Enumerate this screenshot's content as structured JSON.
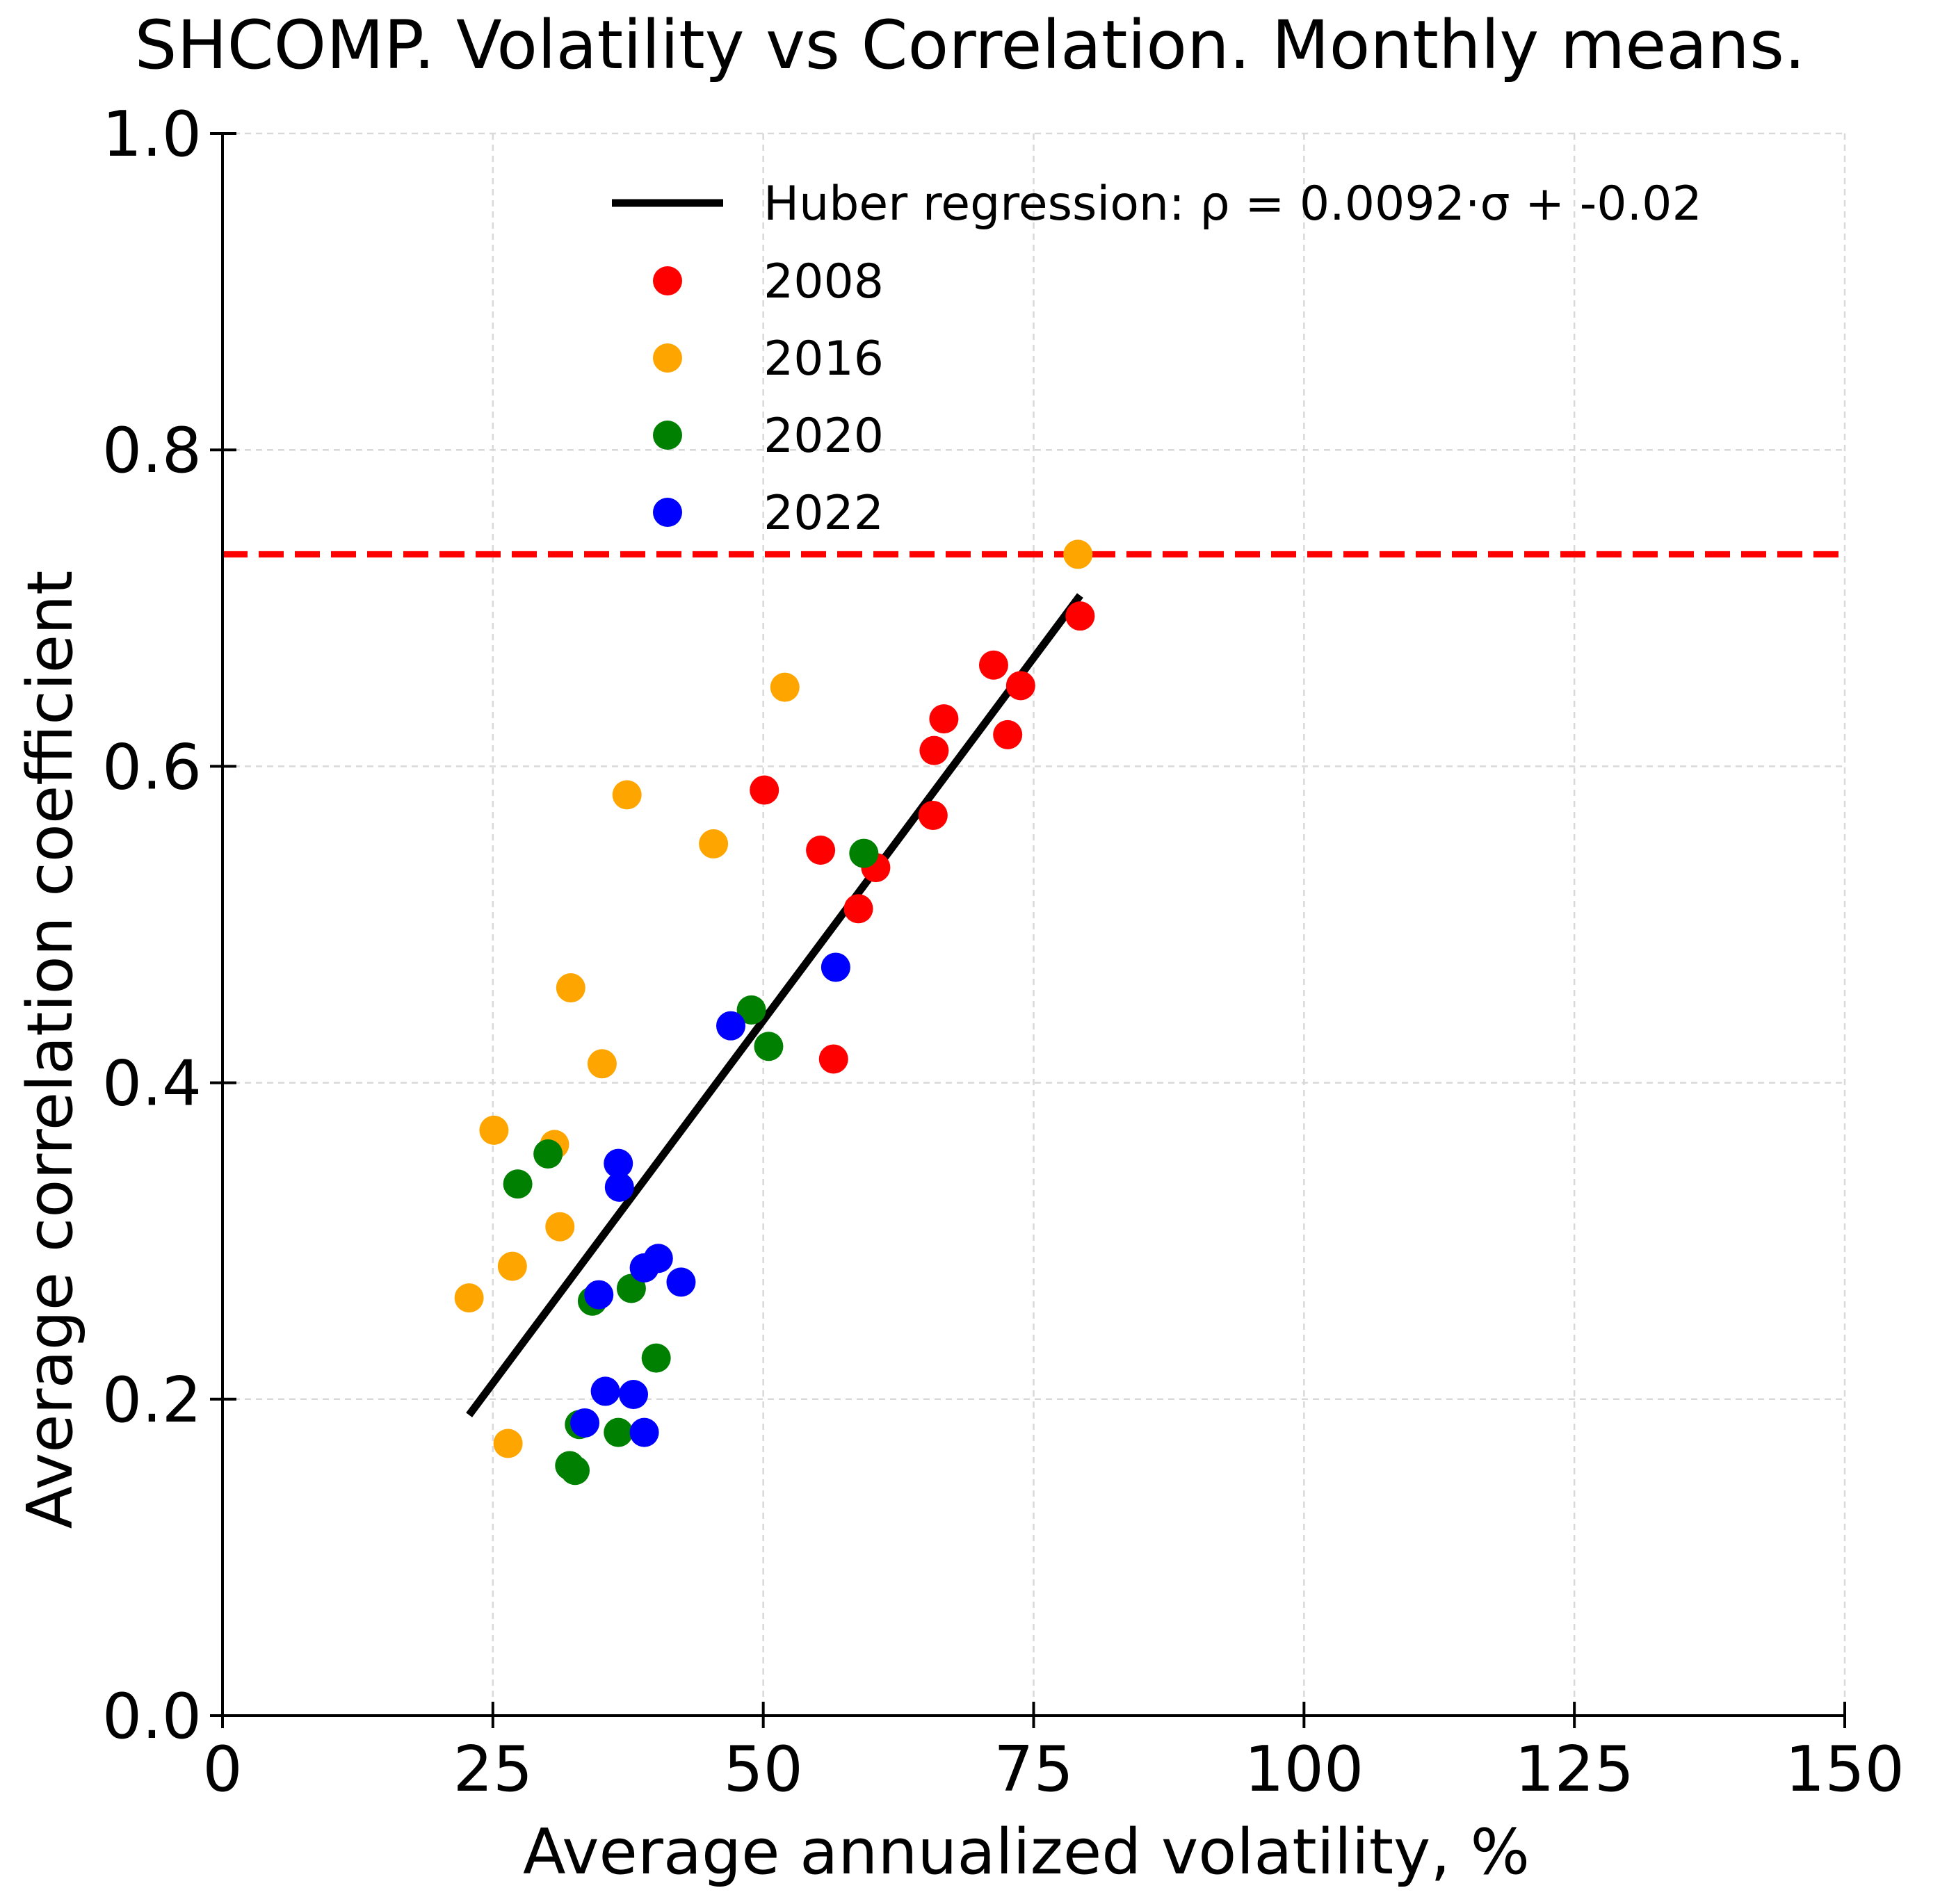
{
  "chart_data": {
    "type": "scatter",
    "title": "SHCOMP. Volatility vs Correlation. Monthly means.",
    "xlabel": "Average annualized volatility, %",
    "ylabel": "Average correlation coefficient",
    "xlim": [
      0,
      150
    ],
    "ylim": [
      0,
      1
    ],
    "xticks": [
      0,
      25,
      50,
      75,
      100,
      125,
      150
    ],
    "yticks": [
      0.0,
      0.2,
      0.4,
      0.6,
      0.8,
      1.0
    ],
    "xtick_labels": [
      "0",
      "25",
      "50",
      "75",
      "100",
      "125",
      "150"
    ],
    "ytick_labels": [
      "0.0",
      "0.2",
      "0.4",
      "0.6",
      "0.8",
      "1.0"
    ],
    "grid": true,
    "legend_position": "top-right",
    "regression": {
      "label": "Huber regression: ρ = 0.0092·σ + -0.02",
      "x": [
        22.8,
        79.3
      ],
      "y": [
        0.19,
        0.708
      ],
      "color": "#000000"
    },
    "hline": {
      "y": 0.734,
      "color": "#ff0000",
      "style": "dashed"
    },
    "series": [
      {
        "name": "2008",
        "color": "#ff0000",
        "points": [
          [
            79.3,
            0.695
          ],
          [
            71.3,
            0.664
          ],
          [
            73.8,
            0.651
          ],
          [
            66.7,
            0.63
          ],
          [
            65.8,
            0.61
          ],
          [
            72.6,
            0.62
          ],
          [
            50.1,
            0.585
          ],
          [
            65.7,
            0.569
          ],
          [
            55.3,
            0.547
          ],
          [
            60.4,
            0.536
          ],
          [
            58.8,
            0.51
          ],
          [
            56.5,
            0.415
          ]
        ]
      },
      {
        "name": "2016",
        "color": "#ffa500",
        "points": [
          [
            79.1,
            0.734
          ],
          [
            52.0,
            0.65
          ],
          [
            37.4,
            0.582
          ],
          [
            45.4,
            0.551
          ],
          [
            32.2,
            0.46
          ],
          [
            35.1,
            0.412
          ],
          [
            25.1,
            0.37
          ],
          [
            30.7,
            0.361
          ],
          [
            31.2,
            0.309
          ],
          [
            26.8,
            0.284
          ],
          [
            22.8,
            0.264
          ],
          [
            26.4,
            0.172
          ]
        ]
      },
      {
        "name": "2020",
        "color": "#008000",
        "points": [
          [
            59.3,
            0.545
          ],
          [
            48.9,
            0.446
          ],
          [
            50.5,
            0.423
          ],
          [
            30.1,
            0.355
          ],
          [
            27.3,
            0.336
          ],
          [
            34.2,
            0.262
          ],
          [
            37.8,
            0.27
          ],
          [
            40.1,
            0.226
          ],
          [
            33.0,
            0.184
          ],
          [
            36.6,
            0.179
          ],
          [
            32.1,
            0.158
          ],
          [
            32.6,
            0.155
          ]
        ]
      },
      {
        "name": "2022",
        "color": "#0000ff",
        "points": [
          [
            56.7,
            0.473
          ],
          [
            47.0,
            0.436
          ],
          [
            36.6,
            0.349
          ],
          [
            36.7,
            0.334
          ],
          [
            40.3,
            0.289
          ],
          [
            39.0,
            0.283
          ],
          [
            42.4,
            0.274
          ],
          [
            34.8,
            0.266
          ],
          [
            35.4,
            0.205
          ],
          [
            38.0,
            0.203
          ],
          [
            33.5,
            0.185
          ],
          [
            39.0,
            0.179
          ]
        ]
      }
    ]
  }
}
